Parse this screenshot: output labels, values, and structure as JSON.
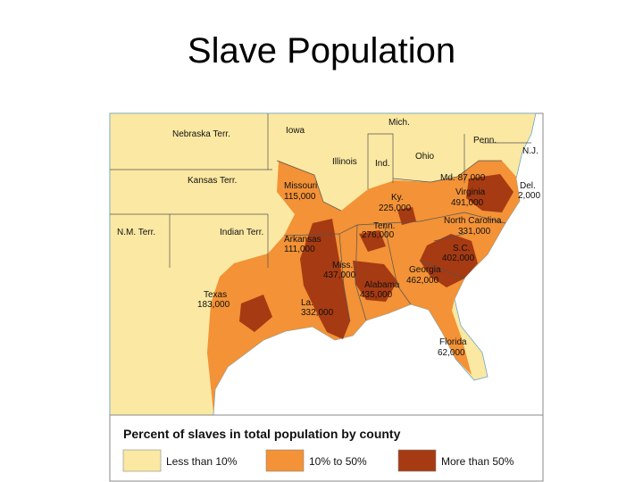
{
  "title": "Slave Population",
  "map": {
    "labels": [
      "Nebraska Terr.",
      "Iowa",
      "Mich.",
      "Penn.",
      "N.J.",
      "Ohio",
      "Ind.",
      "Illinois",
      "Kansas Terr.",
      "N.M. Terr.",
      "Indian Terr."
    ],
    "states": [
      {
        "name": "Missouri",
        "slaves": "115,000"
      },
      {
        "name": "Ky.",
        "slaves": "225,000"
      },
      {
        "name": "Md.",
        "slaves": "87,000"
      },
      {
        "name": "Del.",
        "slaves": "2,000"
      },
      {
        "name": "Virginia",
        "slaves": "491,000"
      },
      {
        "name": "Tenn.",
        "slaves": "276,000"
      },
      {
        "name": "North Carolina",
        "slaves": "331,000"
      },
      {
        "name": "Arkansas",
        "slaves": "111,000"
      },
      {
        "name": "S.C.",
        "slaves": "402,000"
      },
      {
        "name": "Miss.",
        "slaves": "437,000"
      },
      {
        "name": "Georgia",
        "slaves": "462,000"
      },
      {
        "name": "Alabama",
        "slaves": "435,000"
      },
      {
        "name": "Texas",
        "slaves": "183,000"
      },
      {
        "name": "La.",
        "slaves": "332,000"
      },
      {
        "name": "Florida",
        "slaves": "62,000"
      }
    ]
  },
  "legend": {
    "title": "Percent of slaves in total population by county",
    "items": [
      {
        "label": "Less than 10%",
        "color": "#fbe8a2"
      },
      {
        "label": "10% to 50%",
        "color": "#f39236"
      },
      {
        "label": "More than 50%",
        "color": "#a63a12"
      }
    ]
  }
}
